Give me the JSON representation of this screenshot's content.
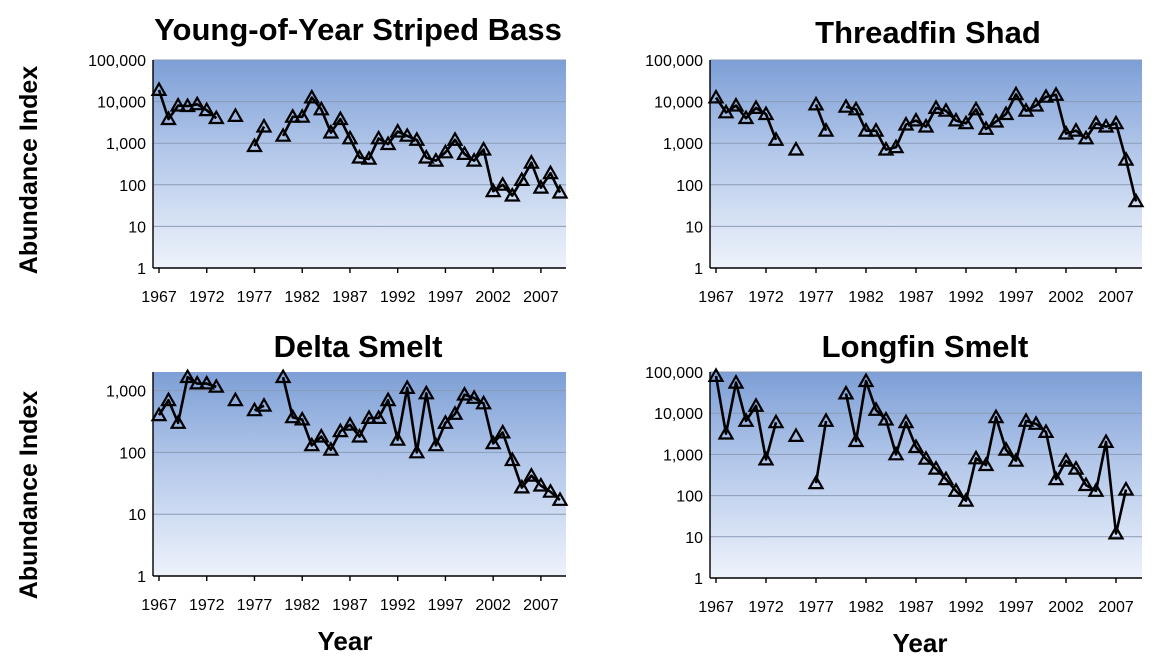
{
  "shared": {
    "y_axis_label": "Abundance Index",
    "x_axis_label": "Year"
  },
  "chart_data": [
    {
      "type": "line",
      "title": "Young-of-Year Striped Bass",
      "ylabel": "Abundance Index",
      "xlabel": "",
      "yscale": "log",
      "ylim": [
        1,
        100000
      ],
      "xlim": [
        1967,
        2009
      ],
      "x_ticks": [
        "1967",
        "1972",
        "1977",
        "1982",
        "1987",
        "1992",
        "1997",
        "2002",
        "2007"
      ],
      "y_ticks": [
        "1",
        "10",
        "100",
        "1,000",
        "10,000",
        "100,000"
      ],
      "marker": "open-triangle",
      "points": [
        [
          1967,
          19000
        ],
        [
          1968,
          3800
        ],
        [
          1969,
          8000
        ],
        [
          1970,
          7800
        ],
        [
          1971,
          8600
        ],
        [
          1972,
          6200
        ],
        [
          1973,
          4000
        ],
        [
          1974,
          null
        ],
        [
          1975,
          4500
        ],
        [
          1976,
          null
        ],
        [
          1977,
          850
        ],
        [
          1978,
          2500
        ],
        [
          1979,
          null
        ],
        [
          1980,
          1500
        ],
        [
          1981,
          4300
        ],
        [
          1982,
          4300
        ],
        [
          1983,
          12500
        ],
        [
          1984,
          6500
        ],
        [
          1985,
          1800
        ],
        [
          1986,
          3800
        ],
        [
          1987,
          1300
        ],
        [
          1988,
          450
        ],
        [
          1989,
          420
        ],
        [
          1990,
          1300
        ],
        [
          1991,
          950
        ],
        [
          1992,
          1900
        ],
        [
          1993,
          1500
        ],
        [
          1994,
          1200
        ],
        [
          1995,
          450
        ],
        [
          1996,
          380
        ],
        [
          1997,
          600
        ],
        [
          1998,
          1200
        ],
        [
          1999,
          550
        ],
        [
          2000,
          380
        ],
        [
          2001,
          700
        ],
        [
          2002,
          70
        ],
        [
          2003,
          100
        ],
        [
          2004,
          55
        ],
        [
          2005,
          130
        ],
        [
          2006,
          340
        ],
        [
          2007,
          85
        ],
        [
          2008,
          190
        ],
        [
          2009,
          65
        ]
      ]
    },
    {
      "type": "line",
      "title": "Threadfin Shad",
      "ylabel": "",
      "xlabel": "",
      "yscale": "log",
      "ylim": [
        1,
        100000
      ],
      "xlim": [
        1967,
        2009
      ],
      "x_ticks": [
        "1967",
        "1972",
        "1977",
        "1982",
        "1987",
        "1992",
        "1997",
        "2002",
        "2007"
      ],
      "y_ticks": [
        "1",
        "10",
        "100",
        "1,000",
        "10,000",
        "100,000"
      ],
      "marker": "open-triangle",
      "points": [
        [
          1967,
          12500
        ],
        [
          1968,
          5500
        ],
        [
          1969,
          8000
        ],
        [
          1970,
          4000
        ],
        [
          1971,
          7000
        ],
        [
          1972,
          5000
        ],
        [
          1973,
          1200
        ],
        [
          1974,
          null
        ],
        [
          1975,
          700
        ],
        [
          1976,
          null
        ],
        [
          1977,
          8500
        ],
        [
          1978,
          2000
        ],
        [
          1979,
          null
        ],
        [
          1980,
          7500
        ],
        [
          1981,
          6500
        ],
        [
          1982,
          2000
        ],
        [
          1983,
          2000
        ],
        [
          1984,
          700
        ],
        [
          1985,
          800
        ],
        [
          1986,
          2800
        ],
        [
          1987,
          3500
        ],
        [
          1988,
          2500
        ],
        [
          1989,
          7000
        ],
        [
          1990,
          6000
        ],
        [
          1991,
          3500
        ],
        [
          1992,
          3000
        ],
        [
          1993,
          6500
        ],
        [
          1994,
          2200
        ],
        [
          1995,
          3300
        ],
        [
          1996,
          5000
        ],
        [
          1997,
          15000
        ],
        [
          1998,
          6000
        ],
        [
          1999,
          8000
        ],
        [
          2000,
          13000
        ],
        [
          2001,
          14500
        ],
        [
          2002,
          1700
        ],
        [
          2003,
          2000
        ],
        [
          2004,
          1300
        ],
        [
          2005,
          3000
        ],
        [
          2006,
          2500
        ],
        [
          2007,
          3000
        ],
        [
          2008,
          400
        ],
        [
          2009,
          40
        ]
      ]
    },
    {
      "type": "line",
      "title": "Delta Smelt",
      "ylabel": "Abundance Index",
      "xlabel": "Year",
      "yscale": "log",
      "ylim": [
        1,
        2000
      ],
      "xlim": [
        1967,
        2009
      ],
      "x_ticks": [
        "1967",
        "1972",
        "1977",
        "1982",
        "1987",
        "1992",
        "1997",
        "2002",
        "2007"
      ],
      "y_ticks": [
        "1",
        "10",
        "100",
        "1,000"
      ],
      "marker": "open-triangle",
      "points": [
        [
          1967,
          400
        ],
        [
          1968,
          700
        ],
        [
          1969,
          300
        ],
        [
          1970,
          1650
        ],
        [
          1971,
          1300
        ],
        [
          1972,
          1300
        ],
        [
          1973,
          1150
        ],
        [
          1974,
          null
        ],
        [
          1975,
          700
        ],
        [
          1976,
          null
        ],
        [
          1977,
          480
        ],
        [
          1978,
          570
        ],
        [
          1979,
          null
        ],
        [
          1980,
          1650
        ],
        [
          1981,
          370
        ],
        [
          1982,
          340
        ],
        [
          1983,
          130
        ],
        [
          1984,
          180
        ],
        [
          1985,
          110
        ],
        [
          1986,
          220
        ],
        [
          1987,
          280
        ],
        [
          1988,
          180
        ],
        [
          1989,
          360
        ],
        [
          1990,
          360
        ],
        [
          1991,
          700
        ],
        [
          1992,
          160
        ],
        [
          1993,
          1100
        ],
        [
          1994,
          100
        ],
        [
          1995,
          900
        ],
        [
          1996,
          130
        ],
        [
          1997,
          300
        ],
        [
          1998,
          420
        ],
        [
          1999,
          860
        ],
        [
          2000,
          760
        ],
        [
          2001,
          620
        ],
        [
          2002,
          140
        ],
        [
          2003,
          210
        ],
        [
          2004,
          75
        ],
        [
          2005,
          27
        ],
        [
          2006,
          42
        ],
        [
          2007,
          29
        ],
        [
          2008,
          23
        ],
        [
          2009,
          17
        ]
      ]
    },
    {
      "type": "line",
      "title": "Longfin Smelt",
      "ylabel": "",
      "xlabel": "Year",
      "yscale": "log",
      "ylim": [
        1,
        100000
      ],
      "xlim": [
        1967,
        2009
      ],
      "x_ticks": [
        "1967",
        "1972",
        "1977",
        "1982",
        "1987",
        "1992",
        "1997",
        "2002",
        "2007"
      ],
      "y_ticks": [
        "1",
        "10",
        "100",
        "1,000",
        "10,000",
        "100,000"
      ],
      "marker": "open-triangle",
      "points": [
        [
          1967,
          80000
        ],
        [
          1968,
          3200
        ],
        [
          1969,
          55000
        ],
        [
          1970,
          6500
        ],
        [
          1971,
          15000
        ],
        [
          1972,
          750
        ],
        [
          1973,
          6000
        ],
        [
          1974,
          null
        ],
        [
          1975,
          2800
        ],
        [
          1976,
          null
        ],
        [
          1977,
          200
        ],
        [
          1978,
          6500
        ],
        [
          1979,
          null
        ],
        [
          1980,
          30000
        ],
        [
          1981,
          2100
        ],
        [
          1982,
          60000
        ],
        [
          1983,
          12000
        ],
        [
          1984,
          7000
        ],
        [
          1985,
          1000
        ],
        [
          1986,
          6000
        ],
        [
          1987,
          1500
        ],
        [
          1988,
          780
        ],
        [
          1989,
          450
        ],
        [
          1990,
          250
        ],
        [
          1991,
          130
        ],
        [
          1992,
          75
        ],
        [
          1993,
          800
        ],
        [
          1994,
          550
        ],
        [
          1995,
          8000
        ],
        [
          1996,
          1300
        ],
        [
          1997,
          700
        ],
        [
          1998,
          6500
        ],
        [
          1999,
          5500
        ],
        [
          2000,
          3500
        ],
        [
          2001,
          250
        ],
        [
          2002,
          700
        ],
        [
          2003,
          450
        ],
        [
          2004,
          180
        ],
        [
          2005,
          130
        ],
        [
          2006,
          2000
        ],
        [
          2007,
          12
        ],
        [
          2008,
          140
        ]
      ]
    }
  ]
}
